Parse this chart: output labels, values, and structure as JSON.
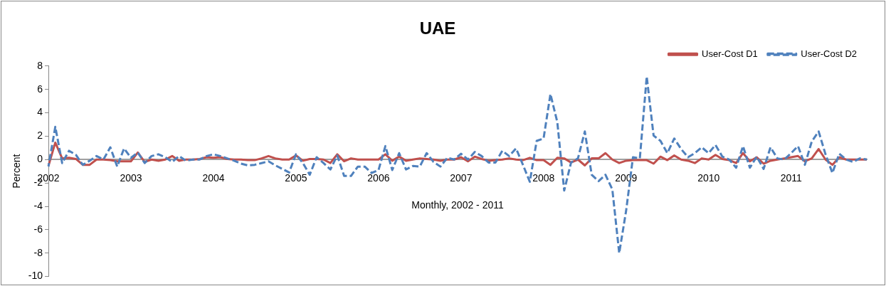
{
  "chart_data": {
    "type": "line",
    "title": "UAE",
    "xlabel": "Monthly, 2002 - 2011",
    "ylabel": "Percent",
    "categories": [
      "2002",
      null,
      null,
      null,
      null,
      null,
      null,
      null,
      null,
      null,
      null,
      null,
      "2003",
      null,
      null,
      null,
      null,
      null,
      null,
      null,
      null,
      null,
      null,
      null,
      "2004",
      null,
      null,
      null,
      null,
      null,
      null,
      null,
      null,
      null,
      null,
      null,
      "2005",
      null,
      null,
      null,
      null,
      null,
      null,
      null,
      null,
      null,
      null,
      null,
      "2006",
      null,
      null,
      null,
      null,
      null,
      null,
      null,
      null,
      null,
      null,
      null,
      "2007",
      null,
      null,
      null,
      null,
      null,
      null,
      null,
      null,
      null,
      null,
      null,
      "2008",
      null,
      null,
      null,
      null,
      null,
      null,
      null,
      null,
      null,
      null,
      null,
      "2009",
      null,
      null,
      null,
      null,
      null,
      null,
      null,
      null,
      null,
      null,
      null,
      "2010",
      null,
      null,
      null,
      null,
      null,
      null,
      null,
      null,
      null,
      null,
      null,
      "2011",
      null,
      null,
      null,
      null,
      null,
      null,
      null,
      null,
      null,
      null,
      null
    ],
    "series": [
      {
        "name": "User-Cost D1",
        "color": "#c0504d",
        "line_style": "solid",
        "values": [
          -0.55,
          1.45,
          0.1,
          0.15,
          0.05,
          -0.45,
          -0.45,
          0,
          0,
          -0.05,
          -0.15,
          -0.15,
          -0.15,
          0.6,
          -0.2,
          0,
          -0.1,
          0,
          0.3,
          -0.1,
          0,
          0,
          0.05,
          0.2,
          0.15,
          0.2,
          0.05,
          0,
          0,
          -0.05,
          -0.05,
          0.1,
          0.3,
          0.1,
          0,
          0,
          0.35,
          -0.1,
          0.05,
          0.05,
          0,
          -0.3,
          0.45,
          -0.15,
          0.1,
          0,
          0,
          0,
          0,
          0.45,
          -0.1,
          0.25,
          -0.1,
          0,
          0.1,
          0.05,
          0,
          -0.1,
          0,
          0,
          0.2,
          -0.15,
          0.25,
          0.05,
          -0.1,
          -0.05,
          0,
          0.1,
          0,
          -0.05,
          0.15,
          -0.05,
          -0.05,
          -0.45,
          0.15,
          0.1,
          -0.25,
          0,
          -0.5,
          0.1,
          0.1,
          0.55,
          0,
          -0.3,
          -0.1,
          -0.05,
          -0.05,
          -0.05,
          -0.35,
          0.25,
          -0.05,
          0.35,
          0,
          -0.1,
          -0.3,
          0.1,
          0,
          0.4,
          0.05,
          -0.05,
          -0.3,
          0.55,
          -0.15,
          0.2,
          -0.35,
          -0.1,
          0,
          0.1,
          0.2,
          0.3,
          -0.15,
          0.1,
          0.9,
          0,
          -0.45,
          0.2,
          0,
          0,
          0,
          0
        ]
      },
      {
        "name": "User-Cost D2",
        "color": "#4f81bd",
        "line_style": "dashed",
        "values": [
          -0.6,
          2.8,
          -0.3,
          0.75,
          0.4,
          -0.45,
          -0.1,
          0.3,
          0,
          1.05,
          -0.6,
          0.95,
          0.15,
          0.6,
          -0.3,
          0.3,
          0.45,
          0.2,
          -0.2,
          0.3,
          -0.1,
          0,
          0,
          0.3,
          0.45,
          0.3,
          0.1,
          -0.1,
          -0.35,
          -0.5,
          -0.45,
          -0.3,
          -0.15,
          -0.5,
          -0.8,
          -1.1,
          0.45,
          -0.3,
          -1.3,
          0.2,
          -0.3,
          -0.85,
          0.35,
          -1.4,
          -1.4,
          -0.6,
          -0.6,
          -1.15,
          -0.9,
          1.15,
          -0.9,
          0.55,
          -0.85,
          -0.55,
          -0.6,
          0.55,
          -0.2,
          -0.6,
          0.15,
          0,
          0.5,
          0,
          0.65,
          0.3,
          -0.25,
          -0.25,
          0.75,
          0.3,
          0.95,
          -0.45,
          -1.9,
          1.6,
          1.8,
          5.6,
          3.2,
          -2.65,
          -0.25,
          0.1,
          2.4,
          -1.3,
          -1.85,
          -1.3,
          -2.55,
          -8.0,
          -4.4,
          0.2,
          0.1,
          7.1,
          2.05,
          1.6,
          0.55,
          1.8,
          0.9,
          0.2,
          0.55,
          1.05,
          0.55,
          1.25,
          0.25,
          0,
          -0.7,
          1.15,
          -0.7,
          0.25,
          -0.8,
          1.05,
          0.1,
          0,
          0.55,
          1.15,
          -0.45,
          1.55,
          2.4,
          0.45,
          -1.15,
          0.5,
          0,
          -0.2,
          0.1,
          0
        ]
      }
    ],
    "ylim": [
      -10,
      8
    ],
    "yticks": [
      -10,
      -8,
      -6,
      -4,
      -2,
      0,
      2,
      4,
      6,
      8
    ],
    "grid": false,
    "legend": "top right",
    "marker": "none"
  }
}
